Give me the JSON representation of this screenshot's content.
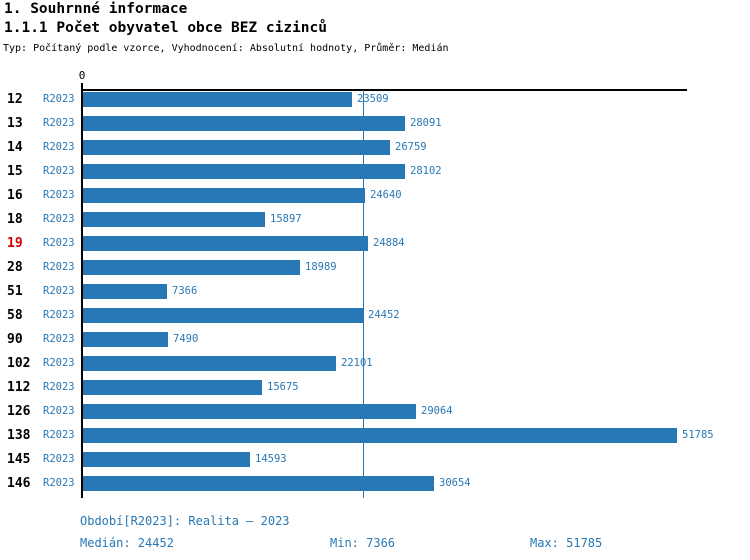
{
  "header": {
    "title": "1. Souhrnné informace",
    "subtitle": "1.1.1 Počet obyvatel obce BEZ cizinců",
    "meta": "Typ: Počítaný podle vzorce, Vyhodnocení: Absolutní hodnoty, Průměr: Medián"
  },
  "chart_data": {
    "type": "bar",
    "orientation": "horizontal",
    "series_label": "R2023",
    "categories": [
      "12",
      "13",
      "14",
      "15",
      "16",
      "18",
      "19",
      "28",
      "51",
      "58",
      "90",
      "102",
      "112",
      "126",
      "138",
      "145",
      "146"
    ],
    "values": [
      23509,
      28091,
      26759,
      28102,
      24640,
      15897,
      24884,
      18989,
      7366,
      24452,
      7490,
      22101,
      15675,
      29064,
      51785,
      14593,
      30654
    ],
    "highlighted_category": "19",
    "axis_zero_label": "0",
    "xlim": [
      0,
      52600
    ],
    "median_line_value": 24452,
    "median": 24452,
    "min": 7366,
    "max": 51785,
    "bar_color": "#2878b5",
    "highlight_color": "#d40000",
    "grid": false,
    "legend_position": "none"
  },
  "footer": {
    "period": "Období[R2023]: Realita – 2023",
    "median_label": "Medián: 24452",
    "min_label": "Min: 7366",
    "max_label": "Max: 51785"
  }
}
